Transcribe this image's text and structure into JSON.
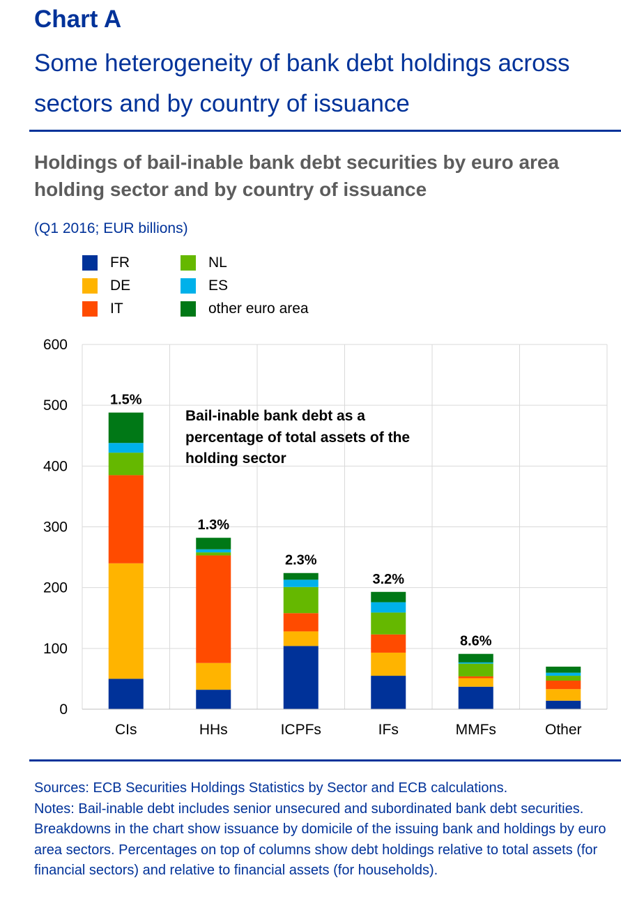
{
  "header": {
    "chart_label": "Chart A",
    "title": "Some heterogeneity of bank debt holdings across sectors and by country of issuance",
    "subtitle": "Holdings of bail-inable bank debt securities by euro area holding sector and by country of issuance",
    "units": "(Q1 2016; EUR billions)"
  },
  "colors": {
    "FR": "#003299",
    "DE": "#FFB400",
    "IT": "#FF4B00",
    "NL": "#65B800",
    "ES": "#00B1EA",
    "other euro area": "#007816",
    "grid": "#d9d9d9",
    "rule": "#003299"
  },
  "chart_data": {
    "type": "bar",
    "stacked": true,
    "categories": [
      "CIs",
      "HHs",
      "ICPFs",
      "IFs",
      "MMFs",
      "Other"
    ],
    "series": [
      {
        "name": "FR",
        "values": [
          50,
          32,
          104,
          55,
          37,
          14
        ]
      },
      {
        "name": "DE",
        "values": [
          190,
          44,
          24,
          38,
          14,
          19
        ]
      },
      {
        "name": "IT",
        "values": [
          145,
          177,
          30,
          30,
          3,
          14
        ]
      },
      {
        "name": "NL",
        "values": [
          37,
          5,
          43,
          36,
          21,
          8
        ]
      },
      {
        "name": "ES",
        "values": [
          16,
          5,
          12,
          17,
          2,
          5
        ]
      },
      {
        "name": "other euro area",
        "values": [
          50,
          19,
          11,
          17,
          14,
          10
        ]
      }
    ],
    "percent_labels": [
      "1.5%",
      "1.3%",
      "2.3%",
      "3.2%",
      "8.6%",
      ""
    ],
    "ylim": [
      0,
      600
    ],
    "yticks": [
      0,
      100,
      200,
      300,
      400,
      500,
      600
    ],
    "ytick_labels": [
      "0",
      "100",
      "200",
      "300",
      "400",
      "500",
      "600"
    ],
    "annotation": "Bail-inable bank debt as a percentage of total assets of the holding sector",
    "grid": true,
    "legend_position": "top-left",
    "xlabel": "",
    "ylabel": ""
  },
  "footer": {
    "sources": "Sources: ECB Securities Holdings Statistics by Sector and ECB calculations.",
    "notes": "Notes: Bail-inable debt includes senior unsecured and subordinated bank debt securities. Breakdowns in the chart show issuance by domicile of the issuing bank and holdings by euro area sectors. Percentages on top of columns show debt holdings relative to total assets (for financial sectors) and relative to financial assets (for households)."
  }
}
